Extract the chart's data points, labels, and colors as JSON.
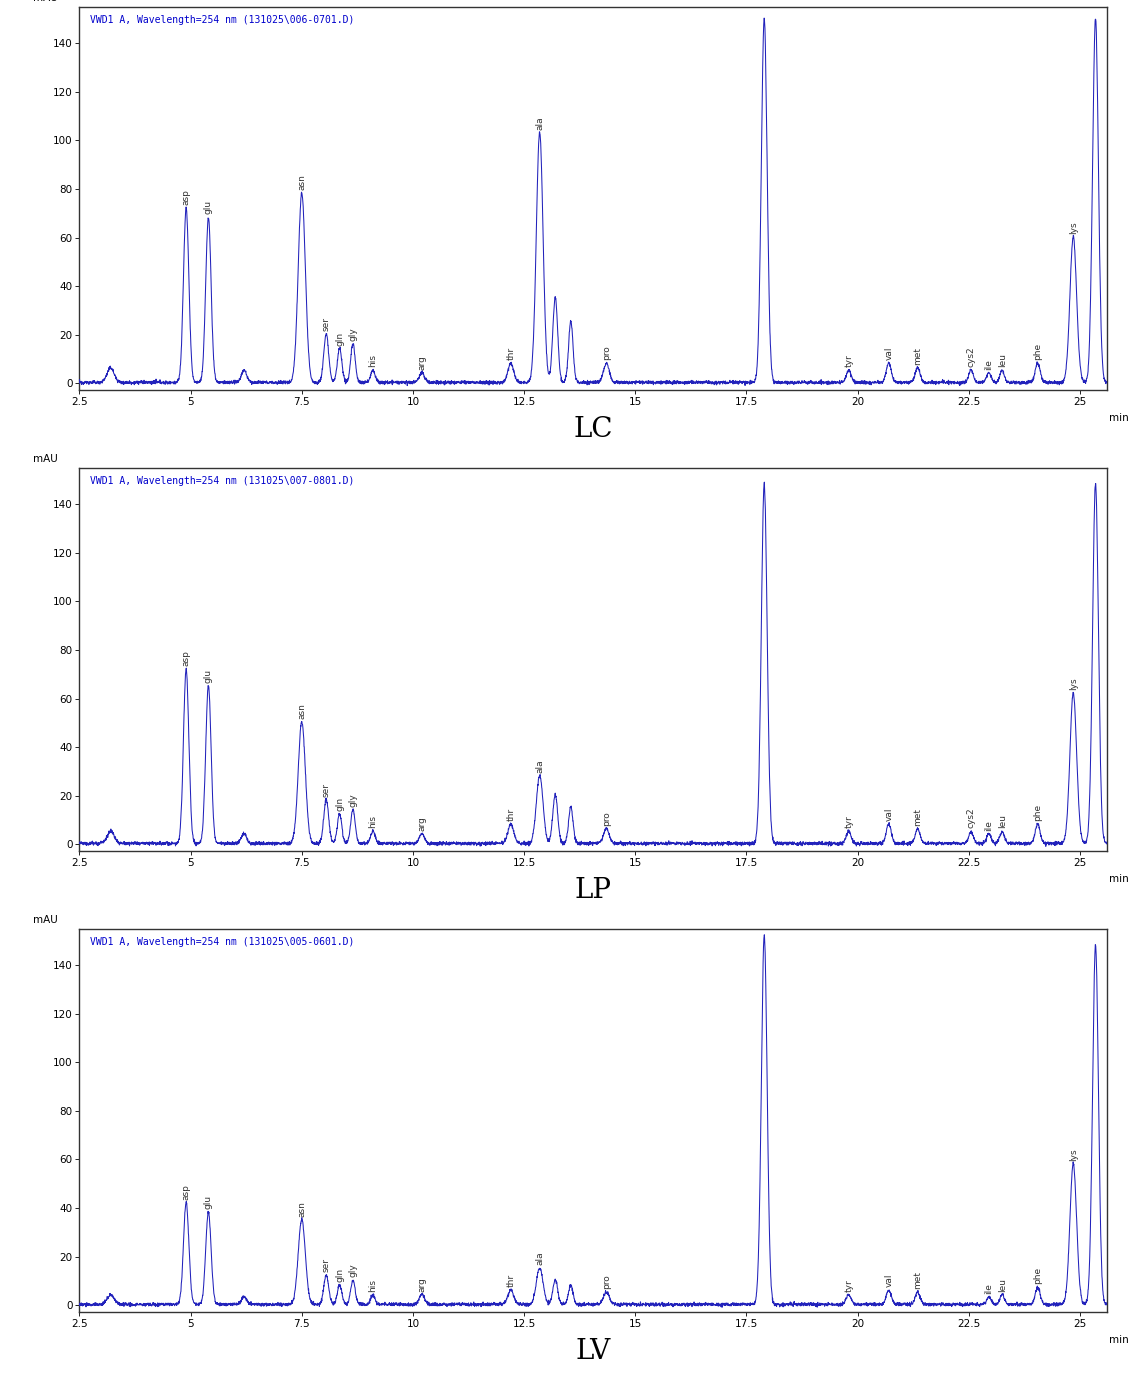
{
  "panels": [
    {
      "title_text": "VWD1 A, Wavelength=254 nm (131025\\006-0701.D)",
      "label": "LC",
      "peaks": [
        {
          "name": "asp",
          "x": 4.9,
          "height": 72,
          "sigma": 0.06
        },
        {
          "name": "glu",
          "x": 5.4,
          "height": 68,
          "sigma": 0.06
        },
        {
          "name": "",
          "x": 3.2,
          "height": 6,
          "sigma": 0.08
        },
        {
          "name": "",
          "x": 6.2,
          "height": 5,
          "sigma": 0.06
        },
        {
          "name": "asn",
          "x": 7.5,
          "height": 78,
          "sigma": 0.08
        },
        {
          "name": "ser",
          "x": 8.05,
          "height": 20,
          "sigma": 0.055
        },
        {
          "name": "gln",
          "x": 8.35,
          "height": 14,
          "sigma": 0.05
        },
        {
          "name": "gly",
          "x": 8.65,
          "height": 16,
          "sigma": 0.05
        },
        {
          "name": "his",
          "x": 9.1,
          "height": 5,
          "sigma": 0.05
        },
        {
          "name": "arg",
          "x": 10.2,
          "height": 4,
          "sigma": 0.06
        },
        {
          "name": "thr",
          "x": 12.2,
          "height": 8,
          "sigma": 0.065
        },
        {
          "name": "ala",
          "x": 12.85,
          "height": 103,
          "sigma": 0.075
        },
        {
          "name": "",
          "x": 13.2,
          "height": 35,
          "sigma": 0.055
        },
        {
          "name": "",
          "x": 13.55,
          "height": 25,
          "sigma": 0.05
        },
        {
          "name": "pro",
          "x": 14.35,
          "height": 8,
          "sigma": 0.065
        },
        {
          "name": "",
          "x": 17.9,
          "height": 150,
          "sigma": 0.065
        },
        {
          "name": "tyr",
          "x": 19.8,
          "height": 5,
          "sigma": 0.055
        },
        {
          "name": "val",
          "x": 20.7,
          "height": 8,
          "sigma": 0.055
        },
        {
          "name": "met",
          "x": 21.35,
          "height": 6,
          "sigma": 0.055
        },
        {
          "name": "cys2",
          "x": 22.55,
          "height": 5,
          "sigma": 0.05
        },
        {
          "name": "ile",
          "x": 22.95,
          "height": 4,
          "sigma": 0.05
        },
        {
          "name": "leu",
          "x": 23.25,
          "height": 5,
          "sigma": 0.05
        },
        {
          "name": "phe",
          "x": 24.05,
          "height": 8,
          "sigma": 0.055
        },
        {
          "name": "lys",
          "x": 24.85,
          "height": 60,
          "sigma": 0.075
        },
        {
          "name": "",
          "x": 25.35,
          "height": 150,
          "sigma": 0.065
        }
      ]
    },
    {
      "title_text": "VWD1 A, Wavelength=254 nm (131025\\007-0801.D)",
      "label": "LP",
      "peaks": [
        {
          "name": "asp",
          "x": 4.9,
          "height": 72,
          "sigma": 0.06
        },
        {
          "name": "glu",
          "x": 5.4,
          "height": 65,
          "sigma": 0.06
        },
        {
          "name": "",
          "x": 3.2,
          "height": 5,
          "sigma": 0.08
        },
        {
          "name": "",
          "x": 6.2,
          "height": 4,
          "sigma": 0.06
        },
        {
          "name": "asn",
          "x": 7.5,
          "height": 50,
          "sigma": 0.08
        },
        {
          "name": "ser",
          "x": 8.05,
          "height": 18,
          "sigma": 0.055
        },
        {
          "name": "gln",
          "x": 8.35,
          "height": 12,
          "sigma": 0.05
        },
        {
          "name": "gly",
          "x": 8.65,
          "height": 14,
          "sigma": 0.05
        },
        {
          "name": "his",
          "x": 9.1,
          "height": 5,
          "sigma": 0.05
        },
        {
          "name": "arg",
          "x": 10.2,
          "height": 4,
          "sigma": 0.06
        },
        {
          "name": "thr",
          "x": 12.2,
          "height": 8,
          "sigma": 0.065
        },
        {
          "name": "ala",
          "x": 12.85,
          "height": 28,
          "sigma": 0.075
        },
        {
          "name": "",
          "x": 13.2,
          "height": 20,
          "sigma": 0.055
        },
        {
          "name": "",
          "x": 13.55,
          "height": 15,
          "sigma": 0.05
        },
        {
          "name": "pro",
          "x": 14.35,
          "height": 6,
          "sigma": 0.065
        },
        {
          "name": "",
          "x": 17.9,
          "height": 148,
          "sigma": 0.065
        },
        {
          "name": "tyr",
          "x": 19.8,
          "height": 5,
          "sigma": 0.055
        },
        {
          "name": "val",
          "x": 20.7,
          "height": 8,
          "sigma": 0.055
        },
        {
          "name": "met",
          "x": 21.35,
          "height": 6,
          "sigma": 0.055
        },
        {
          "name": "cys2",
          "x": 22.55,
          "height": 5,
          "sigma": 0.05
        },
        {
          "name": "ile",
          "x": 22.95,
          "height": 4,
          "sigma": 0.05
        },
        {
          "name": "leu",
          "x": 23.25,
          "height": 5,
          "sigma": 0.05
        },
        {
          "name": "phe",
          "x": 24.05,
          "height": 8,
          "sigma": 0.055
        },
        {
          "name": "lys",
          "x": 24.85,
          "height": 62,
          "sigma": 0.075
        },
        {
          "name": "",
          "x": 25.35,
          "height": 148,
          "sigma": 0.065
        }
      ]
    },
    {
      "title_text": "VWD1 A, Wavelength=254 nm (131025\\005-0601.D)",
      "label": "LV",
      "peaks": [
        {
          "name": "asp",
          "x": 4.9,
          "height": 42,
          "sigma": 0.06
        },
        {
          "name": "glu",
          "x": 5.4,
          "height": 38,
          "sigma": 0.06
        },
        {
          "name": "",
          "x": 3.2,
          "height": 4,
          "sigma": 0.08
        },
        {
          "name": "",
          "x": 6.2,
          "height": 3,
          "sigma": 0.06
        },
        {
          "name": "asn",
          "x": 7.5,
          "height": 35,
          "sigma": 0.08
        },
        {
          "name": "ser",
          "x": 8.05,
          "height": 12,
          "sigma": 0.055
        },
        {
          "name": "gln",
          "x": 8.35,
          "height": 8,
          "sigma": 0.05
        },
        {
          "name": "gly",
          "x": 8.65,
          "height": 10,
          "sigma": 0.05
        },
        {
          "name": "his",
          "x": 9.1,
          "height": 4,
          "sigma": 0.05
        },
        {
          "name": "arg",
          "x": 10.2,
          "height": 4,
          "sigma": 0.06
        },
        {
          "name": "thr",
          "x": 12.2,
          "height": 6,
          "sigma": 0.065
        },
        {
          "name": "ala",
          "x": 12.85,
          "height": 15,
          "sigma": 0.075
        },
        {
          "name": "",
          "x": 13.2,
          "height": 10,
          "sigma": 0.055
        },
        {
          "name": "",
          "x": 13.55,
          "height": 8,
          "sigma": 0.05
        },
        {
          "name": "pro",
          "x": 14.35,
          "height": 5,
          "sigma": 0.065
        },
        {
          "name": "",
          "x": 17.9,
          "height": 152,
          "sigma": 0.065
        },
        {
          "name": "tyr",
          "x": 19.8,
          "height": 4,
          "sigma": 0.055
        },
        {
          "name": "val",
          "x": 20.7,
          "height": 6,
          "sigma": 0.055
        },
        {
          "name": "met",
          "x": 21.35,
          "height": 5,
          "sigma": 0.055
        },
        {
          "name": "ile",
          "x": 22.95,
          "height": 3,
          "sigma": 0.05
        },
        {
          "name": "leu",
          "x": 23.25,
          "height": 4,
          "sigma": 0.05
        },
        {
          "name": "phe",
          "x": 24.05,
          "height": 7,
          "sigma": 0.055
        },
        {
          "name": "lys",
          "x": 24.85,
          "height": 58,
          "sigma": 0.075
        },
        {
          "name": "",
          "x": 25.35,
          "height": 148,
          "sigma": 0.065
        }
      ]
    }
  ],
  "xmin": 2.5,
  "xmax": 25.6,
  "ymin": -3,
  "ymax": 155,
  "yticks": [
    0,
    20,
    40,
    60,
    80,
    100,
    120,
    140
  ],
  "xtick_vals": [
    2.5,
    5.0,
    7.5,
    10.0,
    12.5,
    15.0,
    17.5,
    20.0,
    22.5,
    25.0
  ],
  "xtick_labels": [
    "2.5",
    "5",
    "7.5",
    "10",
    "12.5",
    "15",
    "17.5",
    "20",
    "22.5",
    "25"
  ],
  "line_color": "#2222bb",
  "title_color": "#0000cc",
  "peak_label_color": "#333333",
  "bg_color": "#ffffff",
  "panel_bg": "#ffffff",
  "border_color": "#444444",
  "noise_amplitude": 0.35,
  "baseline": 0.3,
  "label_fontsize": 20,
  "title_fontsize": 7.0,
  "tick_fontsize": 7.5,
  "peak_label_fontsize": 6.5,
  "mau_fontsize": 7.5,
  "min_fontsize": 7.5
}
